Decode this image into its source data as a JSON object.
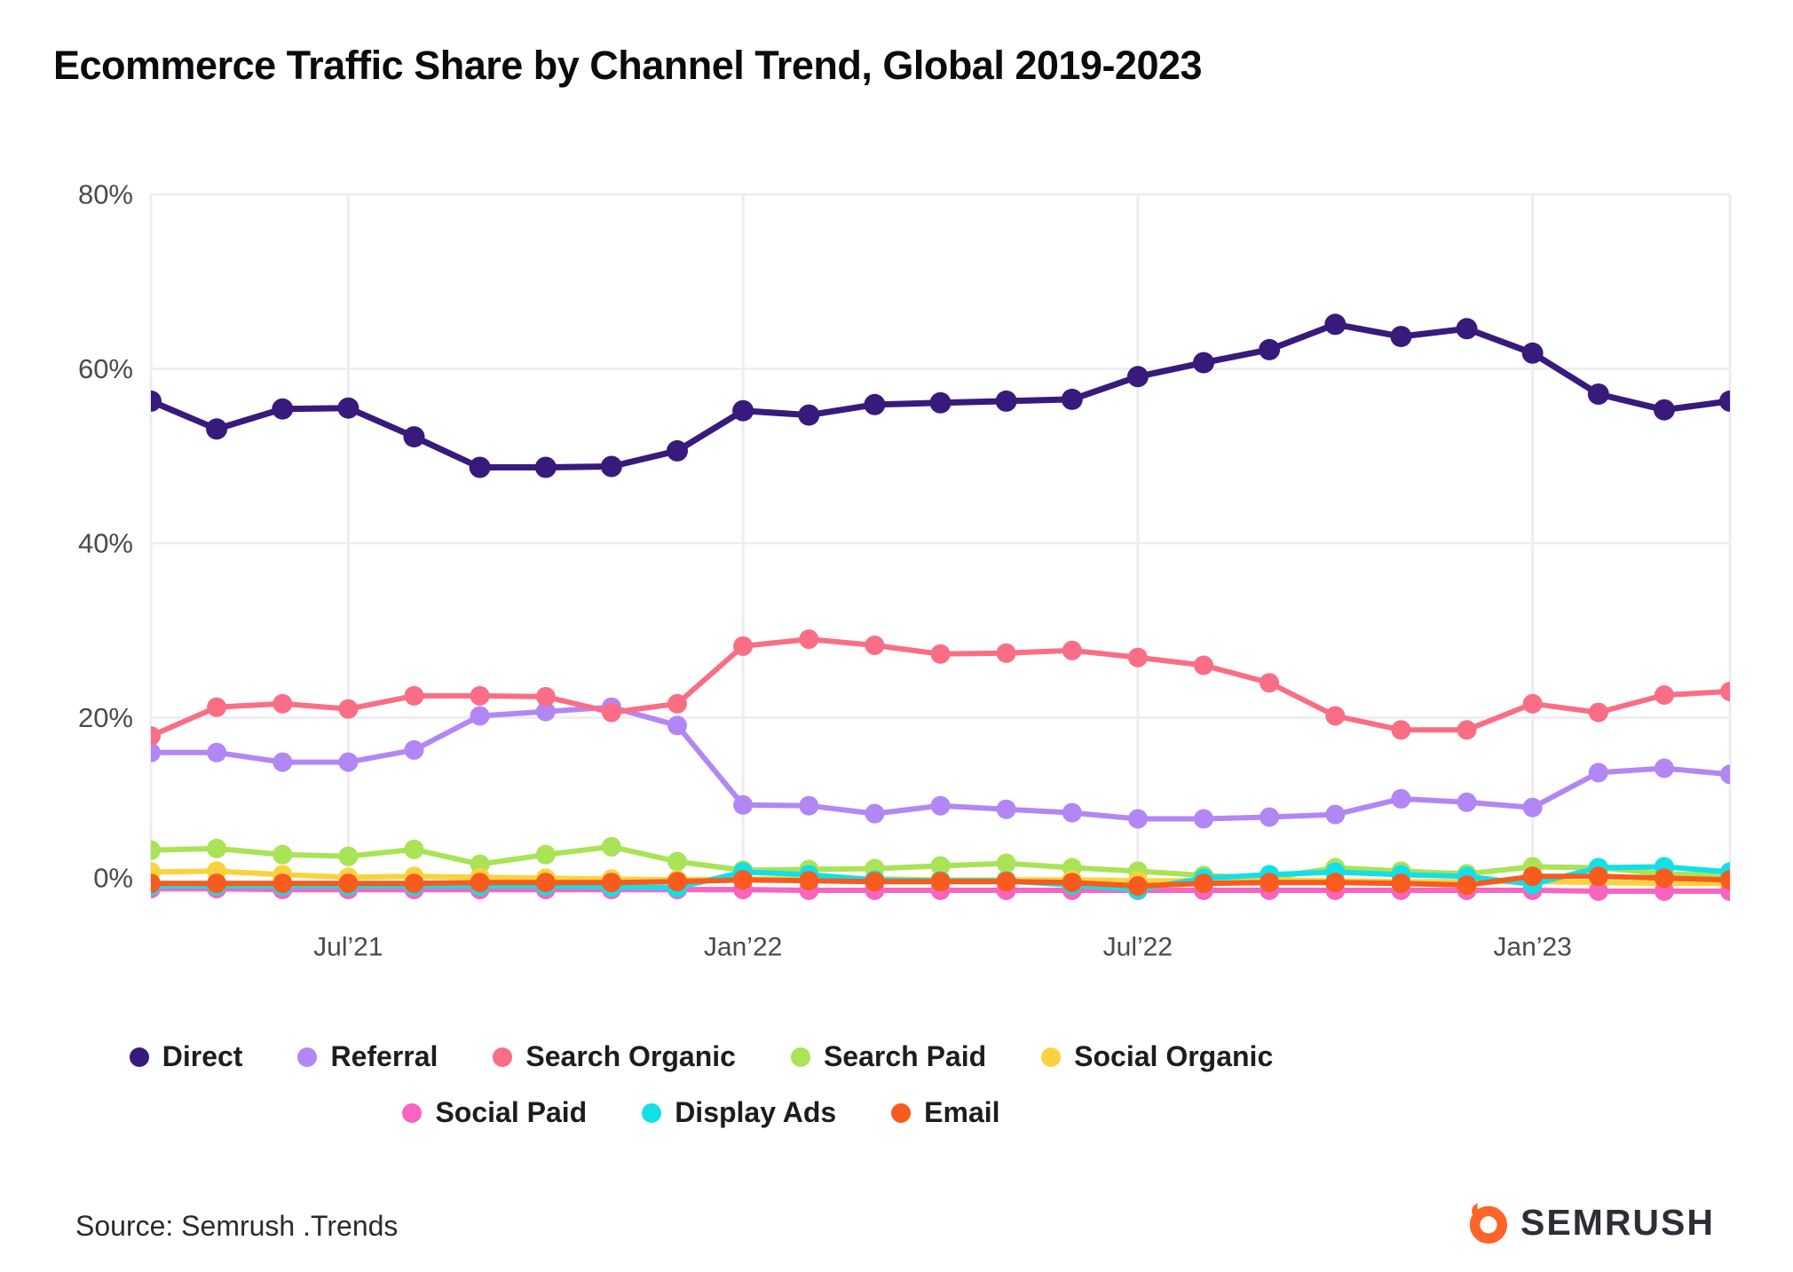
{
  "title": "Ecommerce Traffic Share by Channel Trend, Global 2019-2023",
  "source_text": "Source: Semrush .Trends",
  "brand": {
    "name": "SEMRUSH",
    "flame_color": "#ff6428",
    "text_color": "#2e2e36"
  },
  "chart_data": {
    "type": "line",
    "x_points": 25,
    "x_ticks": [
      {
        "index": 3,
        "label": "Jul’21"
      },
      {
        "index": 9,
        "label": "Jan’22"
      },
      {
        "index": 15,
        "label": "Jul’22"
      },
      {
        "index": 21,
        "label": "Jan’23"
      }
    ],
    "y_axis": {
      "min": 0,
      "max": 80,
      "tick_step": 20,
      "suffix": "%"
    },
    "grid": {
      "color": "#ececf2",
      "label_color": "#4a4a4a"
    },
    "legend_rows": [
      [
        "Direct",
        "Referral",
        "Search Organic",
        "Search Paid",
        "Social Organic"
      ],
      [
        "Social Paid",
        "Display Ads",
        "Email"
      ]
    ],
    "series": [
      {
        "name": "Direct",
        "color": "#381a7d",
        "values": [
          56.3,
          53.1,
          55.4,
          55.5,
          52.2,
          48.7,
          48.7,
          48.8,
          50.6,
          55.2,
          54.7,
          55.9,
          56.1,
          56.3,
          56.5,
          59.1,
          60.7,
          62.2,
          65.1,
          63.7,
          64.6,
          61.8,
          57.1,
          55.3,
          56.3
        ]
      },
      {
        "name": "Referral",
        "color": "#b287f5",
        "values": [
          16.0,
          16.0,
          14.9,
          14.9,
          16.3,
          20.2,
          20.7,
          21.2,
          19.1,
          10.0,
          9.9,
          9.0,
          9.9,
          9.5,
          9.1,
          8.4,
          8.4,
          8.6,
          8.9,
          10.7,
          10.3,
          9.7,
          13.7,
          14.2,
          13.5
        ]
      },
      {
        "name": "Search Organic",
        "color": "#fa6e85",
        "values": [
          17.9,
          21.2,
          21.6,
          21.0,
          22.5,
          22.5,
          22.4,
          20.6,
          21.6,
          28.2,
          29.0,
          28.3,
          27.3,
          27.4,
          27.7,
          26.9,
          26.0,
          24.0,
          20.2,
          18.6,
          18.6,
          21.6,
          20.6,
          22.6,
          23.0
        ]
      },
      {
        "name": "Search Paid",
        "color": "#a9e356",
        "values": [
          4.8,
          5.0,
          4.3,
          4.1,
          4.9,
          3.2,
          4.3,
          5.2,
          3.5,
          2.5,
          2.6,
          2.7,
          3.0,
          3.3,
          2.8,
          2.4,
          1.9,
          1.6,
          2.8,
          2.4,
          2.1,
          2.9,
          2.8,
          2.1,
          1.9
        ]
      },
      {
        "name": "Social Organic",
        "color": "#fbd23d",
        "values": [
          2.3,
          2.4,
          2.0,
          1.7,
          1.8,
          1.7,
          1.6,
          1.5,
          1.4,
          1.5,
          1.5,
          1.5,
          1.4,
          1.4,
          1.4,
          1.3,
          1.3,
          1.4,
          1.3,
          1.2,
          1.2,
          1.2,
          1.1,
          1.0,
          1.0
        ]
      },
      {
        "name": "Social Paid",
        "color": "#f865c0",
        "values": [
          0.4,
          0.4,
          0.3,
          0.3,
          0.3,
          0.3,
          0.3,
          0.3,
          0.3,
          0.3,
          0.2,
          0.2,
          0.2,
          0.2,
          0.2,
          0.2,
          0.2,
          0.2,
          0.2,
          0.2,
          0.2,
          0.2,
          0.1,
          0.1,
          0.1
        ]
      },
      {
        "name": "Display Ads",
        "color": "#12dfe8",
        "values": [
          0.7,
          0.7,
          0.7,
          0.7,
          0.7,
          0.7,
          0.7,
          0.6,
          0.5,
          2.3,
          2.0,
          1.4,
          1.3,
          1.3,
          0.8,
          0.3,
          1.6,
          2.0,
          2.3,
          2.0,
          1.8,
          0.9,
          2.8,
          2.9,
          2.3
        ]
      },
      {
        "name": "Email",
        "color": "#f75b1e",
        "values": [
          1.0,
          1.0,
          1.0,
          1.0,
          1.0,
          1.1,
          1.1,
          1.1,
          1.2,
          1.4,
          1.3,
          1.2,
          1.2,
          1.2,
          1.1,
          0.7,
          1.0,
          1.1,
          1.1,
          1.0,
          0.8,
          1.8,
          1.8,
          1.6,
          1.4
        ]
      }
    ]
  }
}
